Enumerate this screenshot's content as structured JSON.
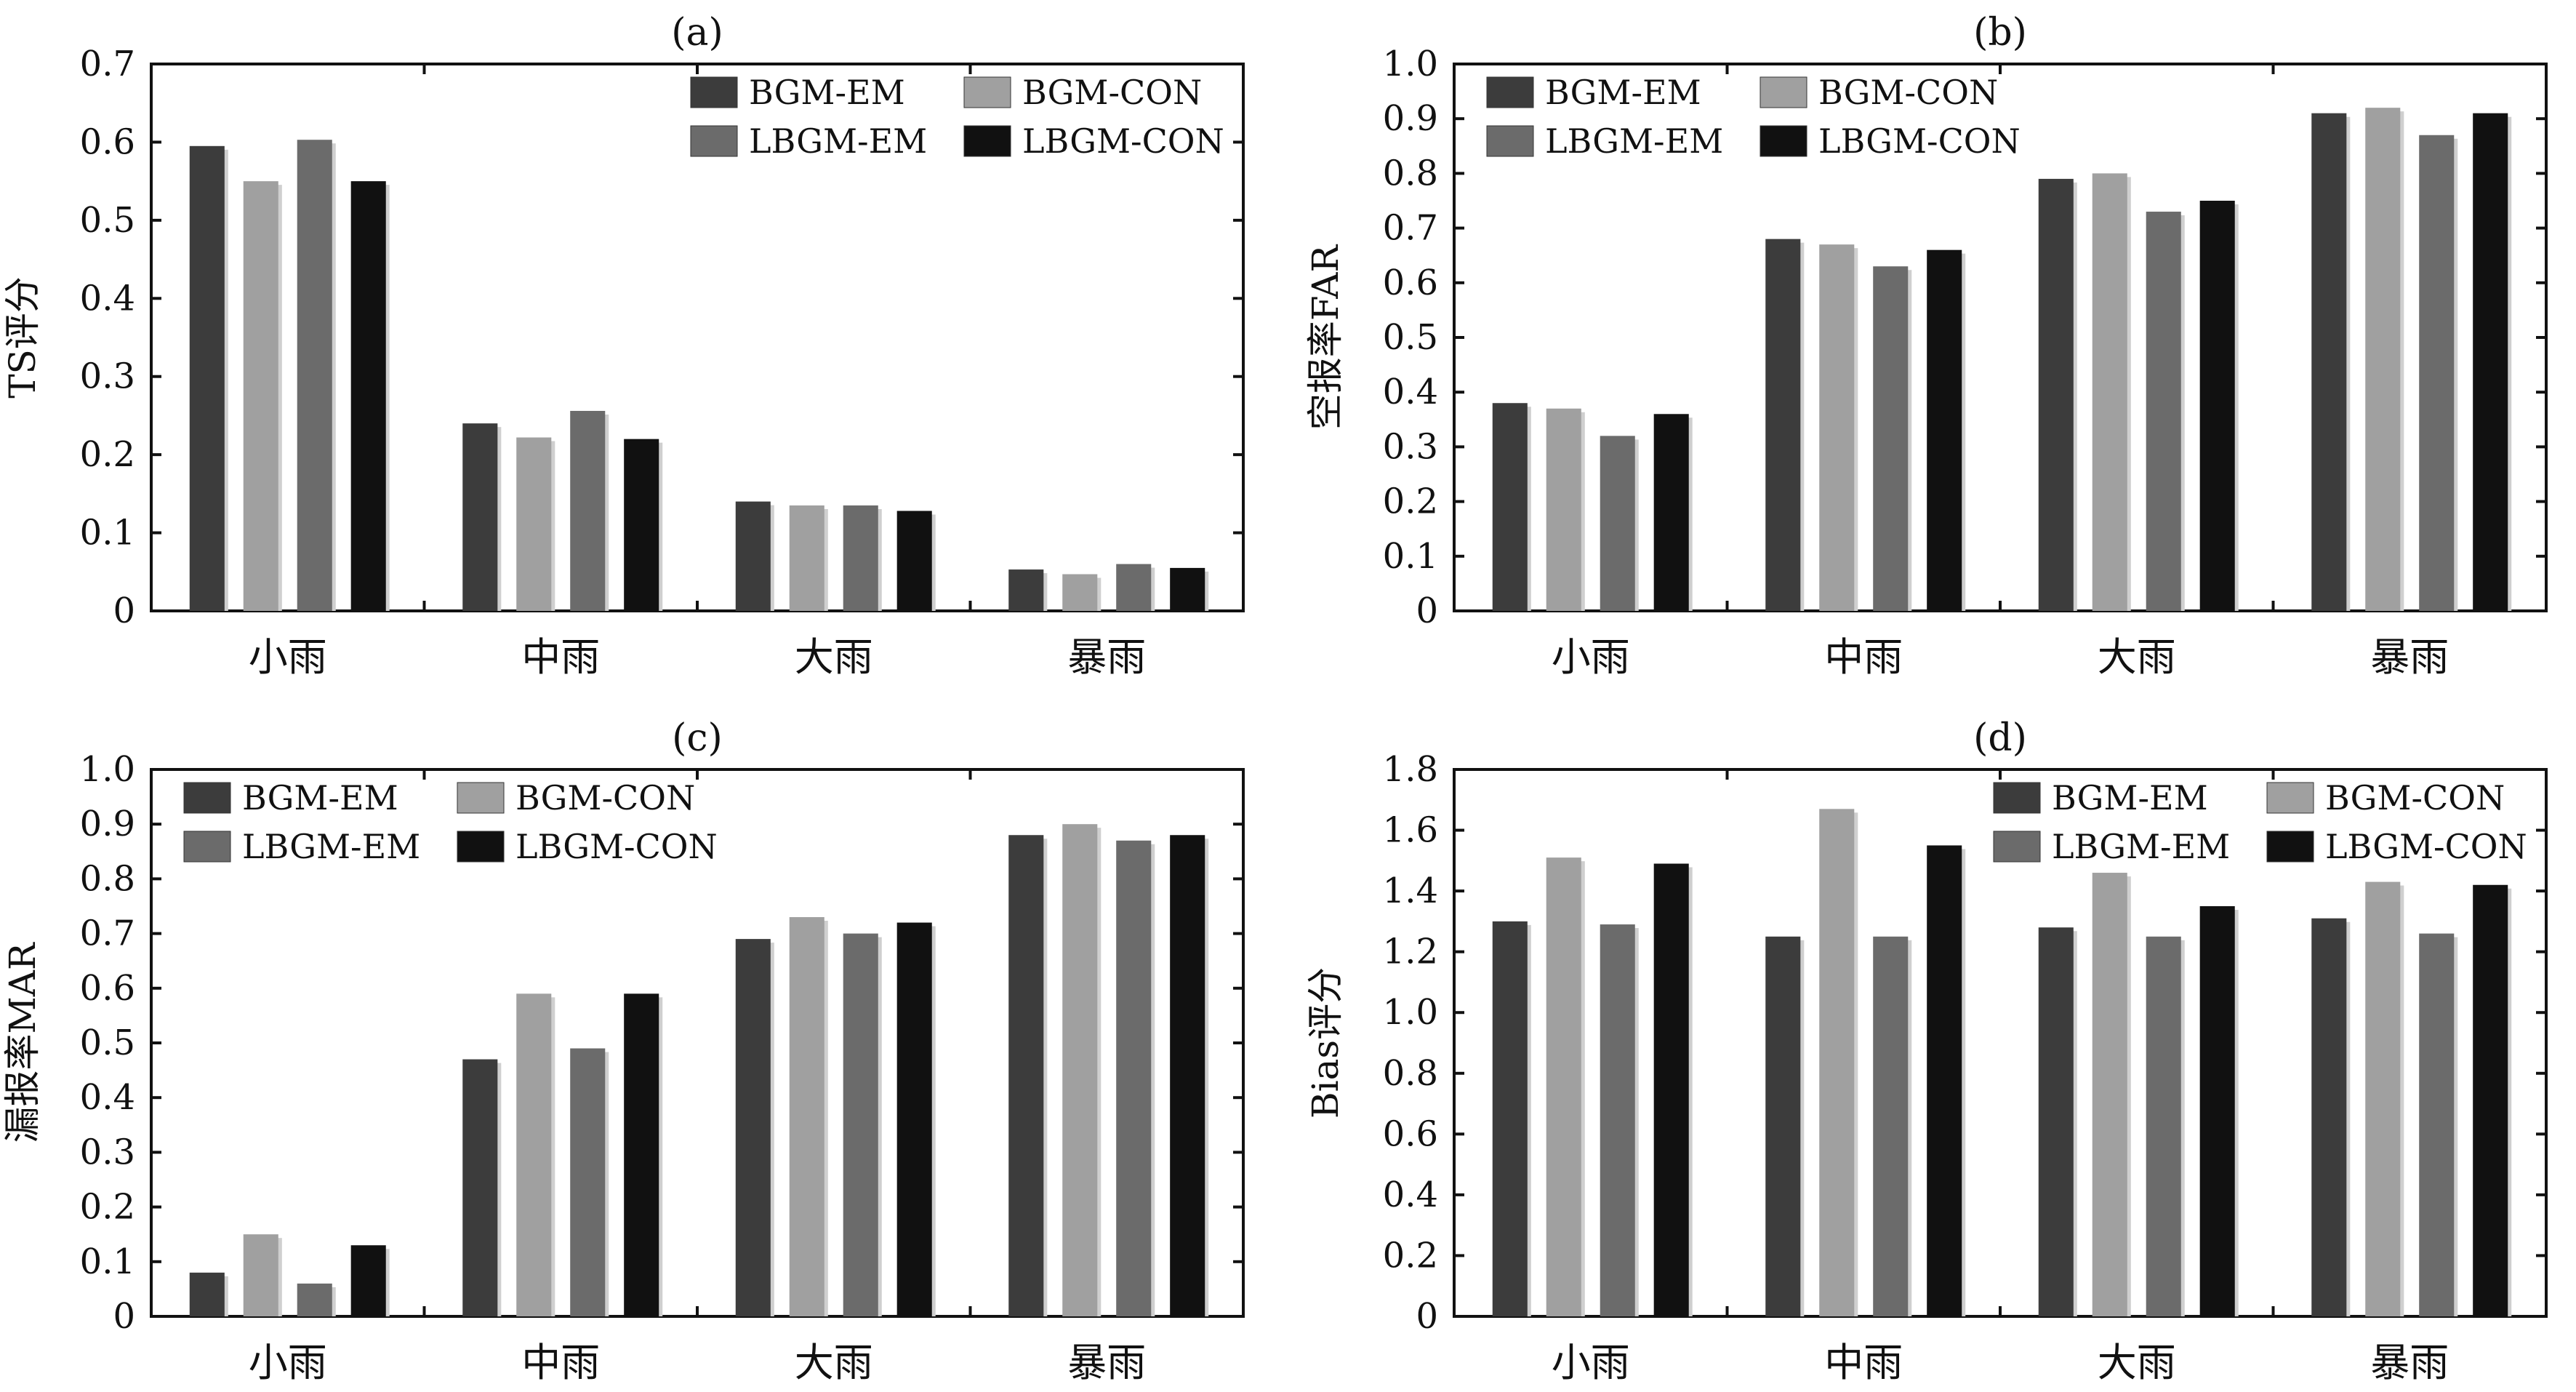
{
  "figure": {
    "series_colors": {
      "BGM-EM": "#3c3c3c",
      "BGM-CON": "#a0a0a0",
      "LBGM-EM": "#6b6b6b",
      "LBGM-CON": "#111111"
    }
  },
  "chart_data": [
    {
      "panel": "(a)",
      "type": "bar",
      "ylabel": "TS评分",
      "categories": [
        "小雨",
        "中雨",
        "大雨",
        "暴雨"
      ],
      "ylim": [
        0,
        0.7
      ],
      "yticks": [
        0,
        0.1,
        0.2,
        0.3,
        0.4,
        0.5,
        0.6,
        0.7
      ],
      "ytick_labels": [
        "0",
        "0.1",
        "0.2",
        "0.3",
        "0.4",
        "0.5",
        "0.6",
        "0.7"
      ],
      "legend_position": "top-right",
      "series": [
        {
          "name": "BGM-EM",
          "values": [
            0.595,
            0.24,
            0.14,
            0.053
          ]
        },
        {
          "name": "BGM-CON",
          "values": [
            0.55,
            0.222,
            0.135,
            0.047
          ]
        },
        {
          "name": "LBGM-EM",
          "values": [
            0.603,
            0.256,
            0.135,
            0.06
          ]
        },
        {
          "name": "LBGM-CON",
          "values": [
            0.55,
            0.22,
            0.128,
            0.055
          ]
        }
      ]
    },
    {
      "panel": "(b)",
      "type": "bar",
      "ylabel": "空报率FAR",
      "categories": [
        "小雨",
        "中雨",
        "大雨",
        "暴雨"
      ],
      "ylim": [
        0,
        1.0
      ],
      "yticks": [
        0,
        0.1,
        0.2,
        0.3,
        0.4,
        0.5,
        0.6,
        0.7,
        0.8,
        0.9,
        1.0
      ],
      "ytick_labels": [
        "0",
        "0.1",
        "0.2",
        "0.3",
        "0.4",
        "0.5",
        "0.6",
        "0.7",
        "0.8",
        "0.9",
        "1.0"
      ],
      "legend_position": "top-left",
      "series": [
        {
          "name": "BGM-EM",
          "values": [
            0.38,
            0.68,
            0.79,
            0.91
          ]
        },
        {
          "name": "BGM-CON",
          "values": [
            0.37,
            0.67,
            0.8,
            0.92
          ]
        },
        {
          "name": "LBGM-EM",
          "values": [
            0.32,
            0.63,
            0.73,
            0.87
          ]
        },
        {
          "name": "LBGM-CON",
          "values": [
            0.36,
            0.66,
            0.75,
            0.91
          ]
        }
      ]
    },
    {
      "panel": "(c)",
      "type": "bar",
      "ylabel": "漏报率MAR",
      "categories": [
        "小雨",
        "中雨",
        "大雨",
        "暴雨"
      ],
      "ylim": [
        0,
        1.0
      ],
      "yticks": [
        0,
        0.1,
        0.2,
        0.3,
        0.4,
        0.5,
        0.6,
        0.7,
        0.8,
        0.9,
        1.0
      ],
      "ytick_labels": [
        "0",
        "0.1",
        "0.2",
        "0.3",
        "0.4",
        "0.5",
        "0.6",
        "0.7",
        "0.8",
        "0.9",
        "1.0"
      ],
      "legend_position": "top-left",
      "series": [
        {
          "name": "BGM-EM",
          "values": [
            0.08,
            0.47,
            0.69,
            0.88
          ]
        },
        {
          "name": "BGM-CON",
          "values": [
            0.15,
            0.59,
            0.73,
            0.9
          ]
        },
        {
          "name": "LBGM-EM",
          "values": [
            0.06,
            0.49,
            0.7,
            0.87
          ]
        },
        {
          "name": "LBGM-CON",
          "values": [
            0.13,
            0.59,
            0.72,
            0.88
          ]
        }
      ]
    },
    {
      "panel": "(d)",
      "type": "bar",
      "ylabel": "Bias评分",
      "categories": [
        "小雨",
        "中雨",
        "大雨",
        "暴雨"
      ],
      "ylim": [
        0,
        1.8
      ],
      "yticks": [
        0,
        0.2,
        0.4,
        0.6,
        0.8,
        1.0,
        1.2,
        1.4,
        1.6,
        1.8
      ],
      "ytick_labels": [
        "0",
        "0.2",
        "0.4",
        "0.6",
        "0.8",
        "1.0",
        "1.2",
        "1.4",
        "1.6",
        "1.8"
      ],
      "legend_position": "top-right",
      "series": [
        {
          "name": "BGM-EM",
          "values": [
            1.3,
            1.25,
            1.28,
            1.31
          ]
        },
        {
          "name": "BGM-CON",
          "values": [
            1.51,
            1.67,
            1.46,
            1.43
          ]
        },
        {
          "name": "LBGM-EM",
          "values": [
            1.29,
            1.25,
            1.25,
            1.26
          ]
        },
        {
          "name": "LBGM-CON",
          "values": [
            1.49,
            1.55,
            1.35,
            1.42
          ]
        }
      ]
    }
  ]
}
